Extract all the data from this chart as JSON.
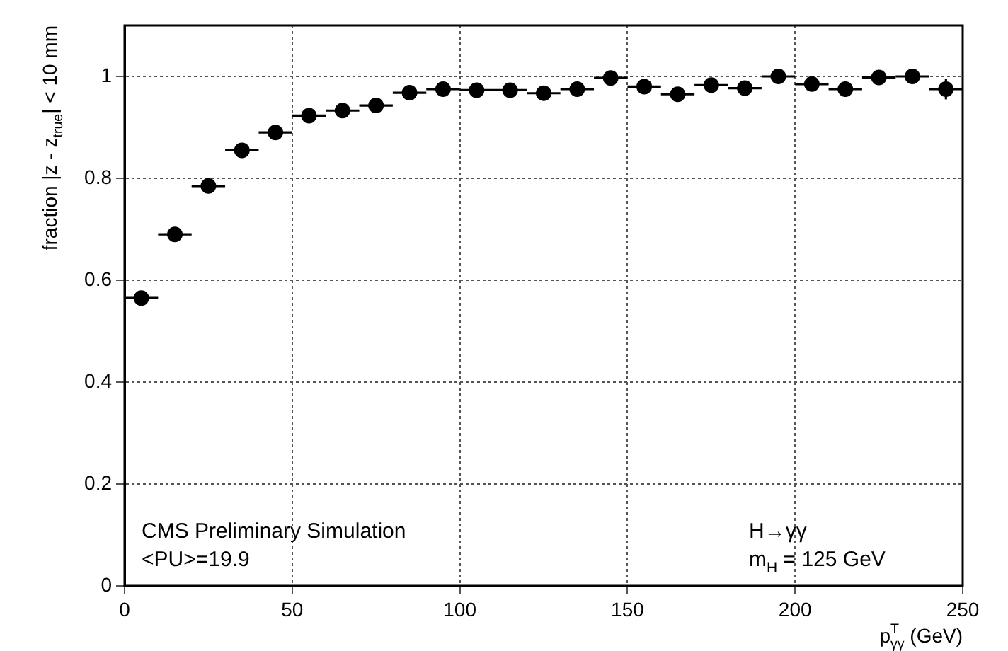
{
  "chart_data": {
    "type": "scatter",
    "xlabel": "p$_{γγ}$$^{T}$ (GeV)",
    "ylabel": "fraction |z - z$_{true}$| < 10 mm",
    "x": [
      5,
      15,
      25,
      35,
      45,
      55,
      65,
      75,
      85,
      95,
      105,
      115,
      125,
      135,
      145,
      155,
      165,
      175,
      185,
      195,
      205,
      215,
      225,
      235,
      245
    ],
    "series": [
      {
        "color": "#000000",
        "values": [
          0.565,
          0.69,
          0.785,
          0.855,
          0.89,
          0.923,
          0.933,
          0.943,
          0.968,
          0.975,
          0.973,
          0.973,
          0.967,
          0.975,
          0.997,
          0.98,
          0.965,
          0.983,
          0.977,
          1.0,
          0.985,
          0.975,
          0.998,
          1.0,
          0.975
        ],
        "errors": [
          null,
          null,
          null,
          null,
          null,
          null,
          null,
          null,
          null,
          null,
          null,
          null,
          null,
          null,
          null,
          null,
          null,
          null,
          null,
          null,
          null,
          0.015,
          null,
          null,
          0.02
        ],
        "xerrors": [
          5,
          5,
          5,
          5,
          5,
          5,
          5,
          5,
          5,
          5,
          5,
          5,
          5,
          5,
          5,
          5,
          5,
          5,
          5,
          5,
          5,
          5,
          5,
          5,
          5
        ]
      }
    ],
    "xlim": [
      0,
      250
    ],
    "xticks": [
      0,
      50,
      100,
      150,
      200,
      250
    ],
    "ylim": [
      0,
      1.1
    ],
    "yticks": [
      0,
      0.2,
      0.4,
      0.6,
      0.8,
      1
    ],
    "grid": true,
    "legend": false,
    "marker": "circle",
    "annotations": [
      "CMS Preliminary Simulation",
      "<PU>=19.9",
      "H→γγ",
      "m$_{H}$ = 125 GeV"
    ]
  }
}
